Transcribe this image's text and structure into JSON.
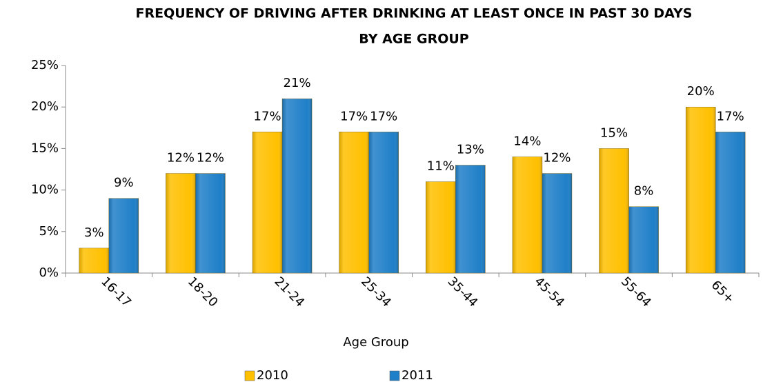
{
  "chart_data": {
    "type": "bar",
    "title": [
      "FREQUENCY OF DRIVING AFTER DRINKING AT LEAST ONCE IN PAST 30 DAYS",
      "BY AGE GROUP"
    ],
    "x_label": "Age Group",
    "categories": [
      "16-17",
      "18-20",
      "21-24",
      "25-34",
      "35-44",
      "45-54",
      "55-64",
      "65+"
    ],
    "series": [
      {
        "name": "2010",
        "color": "#ffc000",
        "values": [
          3,
          12,
          17,
          17,
          11,
          14,
          15,
          20
        ],
        "value_labels": [
          "3%",
          "12%",
          "17%",
          "17%",
          "11%",
          "14%",
          "15%",
          "20%"
        ]
      },
      {
        "name": "2011",
        "color": "#1f7fc8",
        "values": [
          9,
          12,
          21,
          17,
          13,
          12,
          8,
          17
        ],
        "value_labels": [
          "9%",
          "12%",
          "21%",
          "17%",
          "13%",
          "12%",
          "8%",
          "17%"
        ]
      }
    ],
    "ylim": [
      0,
      25
    ],
    "yticks": [
      {
        "value": 0,
        "label": "0%"
      },
      {
        "value": 5,
        "label": "5%"
      },
      {
        "value": 10,
        "label": "10%"
      },
      {
        "value": 15,
        "label": "15%"
      },
      {
        "value": 20,
        "label": "20%"
      },
      {
        "value": 25,
        "label": "25%"
      }
    ],
    "grid": false,
    "legend": "bottom"
  }
}
